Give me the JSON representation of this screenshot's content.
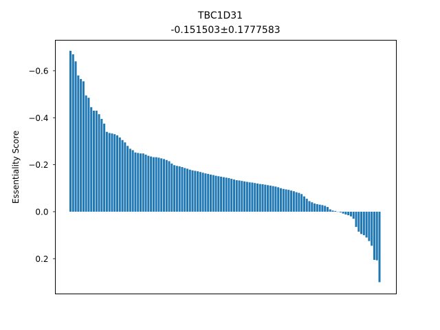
{
  "chart_data": {
    "type": "bar",
    "title": "TBC1D31",
    "subtitle": "-0.151503±0.1777583",
    "ylabel": "Essentiality Score",
    "xlabel": "",
    "ylim": [
      0.35,
      -0.73
    ],
    "y_axis_inverted": true,
    "yticks": [
      -0.6,
      -0.4,
      -0.2,
      0.0,
      0.2
    ],
    "ytick_labels": [
      "−0.6",
      "−0.4",
      "−0.2",
      "0.0",
      "0.2"
    ],
    "grid": false,
    "bar_color": "#1f77b4",
    "values": [
      -0.685,
      -0.67,
      -0.64,
      -0.58,
      -0.565,
      -0.555,
      -0.495,
      -0.485,
      -0.445,
      -0.43,
      -0.43,
      -0.415,
      -0.395,
      -0.375,
      -0.34,
      -0.335,
      -0.333,
      -0.33,
      -0.325,
      -0.316,
      -0.305,
      -0.295,
      -0.28,
      -0.268,
      -0.262,
      -0.252,
      -0.25,
      -0.248,
      -0.248,
      -0.243,
      -0.238,
      -0.235,
      -0.232,
      -0.232,
      -0.23,
      -0.227,
      -0.224,
      -0.22,
      -0.215,
      -0.205,
      -0.198,
      -0.195,
      -0.193,
      -0.19,
      -0.186,
      -0.183,
      -0.179,
      -0.176,
      -0.174,
      -0.172,
      -0.169,
      -0.166,
      -0.163,
      -0.161,
      -0.158,
      -0.156,
      -0.153,
      -0.151,
      -0.149,
      -0.147,
      -0.145,
      -0.143,
      -0.14,
      -0.137,
      -0.134,
      -0.133,
      -0.131,
      -0.129,
      -0.127,
      -0.125,
      -0.124,
      -0.122,
      -0.12,
      -0.118,
      -0.117,
      -0.115,
      -0.113,
      -0.111,
      -0.109,
      -0.107,
      -0.104,
      -0.1,
      -0.097,
      -0.095,
      -0.093,
      -0.09,
      -0.087,
      -0.083,
      -0.08,
      -0.075,
      -0.065,
      -0.055,
      -0.045,
      -0.04,
      -0.035,
      -0.032,
      -0.03,
      -0.028,
      -0.025,
      -0.02,
      -0.01,
      -0.005,
      -0.003,
      0.0,
      0.003,
      0.008,
      0.012,
      0.015,
      0.02,
      0.03,
      0.065,
      0.085,
      0.095,
      0.1,
      0.11,
      0.125,
      0.145,
      0.205,
      0.207,
      0.3
    ]
  }
}
